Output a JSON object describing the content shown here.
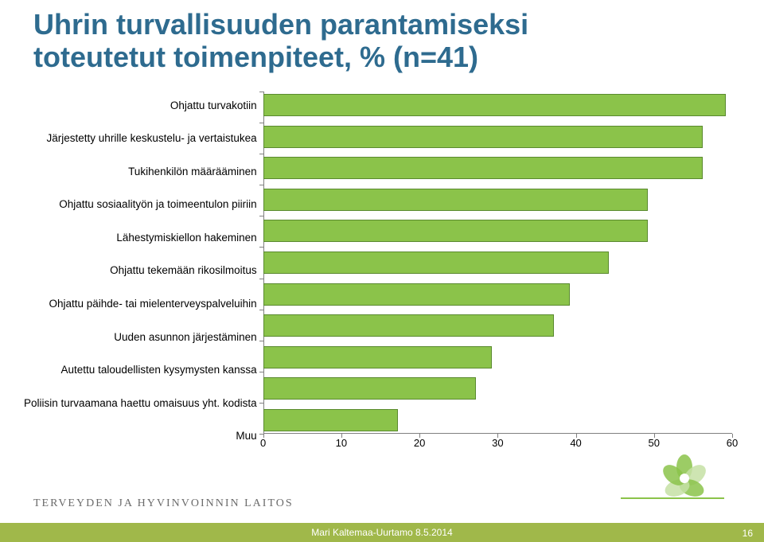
{
  "title_color": "#2e6b8f",
  "title_line1": "Uhrin turvallisuuden parantamiseksi",
  "title_line2": "toteutetut toimenpiteet, % (n=41)",
  "chart": {
    "type": "bar-horizontal",
    "x_min": 0,
    "x_max": 60,
    "x_tick_step": 10,
    "x_ticks": [
      "0",
      "10",
      "20",
      "30",
      "40",
      "50",
      "60"
    ],
    "bar_fill": "#8bc34a",
    "bar_border": "#5a8a2f",
    "axis_color": "#808080",
    "label_fontsize": 13.5,
    "tick_fontsize": 13,
    "background_color": "#ffffff",
    "categories": [
      {
        "label": "Ohjattu turvakotiin",
        "value": 59
      },
      {
        "label": "Järjestetty uhrille keskustelu- ja vertaistukea",
        "value": 56
      },
      {
        "label": "Tukihenkilön määrääminen",
        "value": 56
      },
      {
        "label": "Ohjattu sosiaalityön ja toimeentulon piiriin",
        "value": 49
      },
      {
        "label": "Lähestymiskiellon hakeminen",
        "value": 49
      },
      {
        "label": "Ohjattu tekemään rikosilmoitus",
        "value": 44
      },
      {
        "label": "Ohjattu päihde- tai mielenterveyspalveluihin",
        "value": 39
      },
      {
        "label": "Uuden asunnon järjestäminen",
        "value": 37
      },
      {
        "label": "Autettu taloudellisten kysymysten kanssa",
        "value": 29
      },
      {
        "label": "Poliisin turvaamana haettu omaisuus yht. kodista",
        "value": 27
      },
      {
        "label": "Muu",
        "value": 17
      }
    ]
  },
  "org_label": "TERVEYDEN JA HYVINVOINNIN LAITOS",
  "footer": {
    "text": "Mari Kaltemaa-Uurtamo 8.5.2014",
    "page": "16",
    "bg_color": "#a0b84a",
    "text_color": "#ffffff"
  },
  "flower": {
    "petal_color": "#8bc34a",
    "petal_light": "#c5e1a5",
    "line_color": "#8bc34a"
  }
}
